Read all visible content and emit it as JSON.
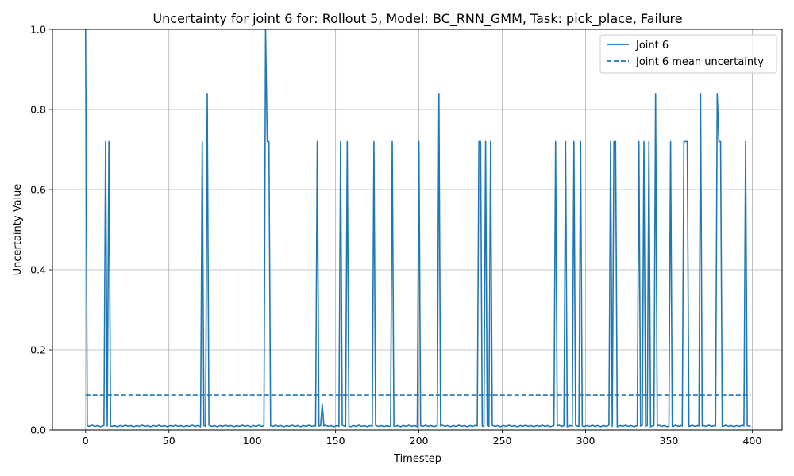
{
  "chart_data": {
    "type": "line",
    "title": "Uncertainty for joint 6 for: Rollout 5, Model: BC_RNN_GMM, Task: pick_place, Failure",
    "xlabel": "Timestep",
    "ylabel": "Uncertainty Value",
    "xlim": [
      -19.9,
      417.9
    ],
    "ylim": [
      0,
      1.0
    ],
    "xticks": [
      0,
      50,
      100,
      150,
      200,
      250,
      300,
      350,
      400
    ],
    "yticks": [
      0.0,
      0.2,
      0.4,
      0.6,
      0.8,
      1.0
    ],
    "xtick_labels": [
      "0",
      "50",
      "100",
      "150",
      "200",
      "250",
      "300",
      "350",
      "400"
    ],
    "ytick_labels": [
      "0.0",
      "0.2",
      "0.4",
      "0.6",
      "0.8",
      "1.0"
    ],
    "grid": true,
    "legend_position": "top-right",
    "baseline": 0.01,
    "series": [
      {
        "name": "Joint 6",
        "style": "solid",
        "color": "#1f77b4",
        "spikes": [
          [
            0,
            1.0
          ],
          [
            12,
            0.72
          ],
          [
            14,
            0.72
          ],
          [
            70,
            0.72
          ],
          [
            73,
            0.84
          ],
          [
            108,
            1.0
          ],
          [
            109,
            0.72
          ],
          [
            110,
            0.72
          ],
          [
            139,
            0.72
          ],
          [
            142,
            0.065
          ],
          [
            153,
            0.72
          ],
          [
            157,
            0.72
          ],
          [
            173,
            0.72
          ],
          [
            184,
            0.72
          ],
          [
            200,
            0.72
          ],
          [
            212,
            0.84
          ],
          [
            236,
            0.72
          ],
          [
            237,
            0.72
          ],
          [
            240,
            0.72
          ],
          [
            243,
            0.72
          ],
          [
            282,
            0.72
          ],
          [
            288,
            0.72
          ],
          [
            293,
            0.72
          ],
          [
            297,
            0.72
          ],
          [
            315,
            0.72
          ],
          [
            317,
            0.72
          ],
          [
            318,
            0.72
          ],
          [
            332,
            0.72
          ],
          [
            335,
            0.72
          ],
          [
            338,
            0.72
          ],
          [
            342,
            0.84
          ],
          [
            351,
            0.72
          ],
          [
            359,
            0.72
          ],
          [
            360,
            0.72
          ],
          [
            361,
            0.72
          ],
          [
            369,
            0.84
          ],
          [
            379,
            0.84
          ],
          [
            380,
            0.72
          ],
          [
            381,
            0.72
          ],
          [
            396,
            0.72
          ]
        ],
        "x_end": 399
      },
      {
        "name": "Joint 6 mean uncertainty",
        "style": "dashed",
        "color": "#1f77b4",
        "x": [
          0,
          399
        ],
        "y": [
          0.087,
          0.087
        ]
      }
    ]
  }
}
